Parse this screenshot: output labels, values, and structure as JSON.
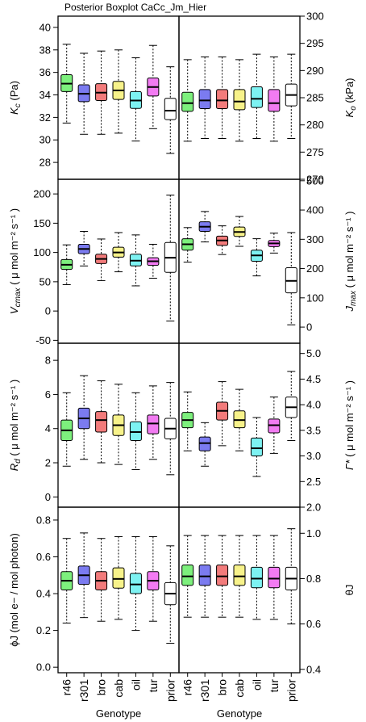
{
  "title": "Posterior Boxplot CaCc_Jm_Hier",
  "xlabel": "Genotype",
  "genotypes": [
    "r46",
    "r301",
    "bro",
    "cab",
    "oil",
    "tur",
    "prior"
  ],
  "colors": [
    "#7df07d",
    "#7b7bf0",
    "#f27b7b",
    "#f7f28a",
    "#7df2f2",
    "#f27bf2",
    "#ffffff"
  ],
  "chart_data": [
    {
      "type": "boxplot",
      "id": "Kc",
      "row": 0,
      "col": 0,
      "yaxis_side": "left",
      "ylabel": "K_c (Pa)",
      "ylabel_main": "K",
      "ylabel_sub": "c",
      "ylabel_rest": " (Pa)",
      "ylim": [
        26.5,
        41
      ],
      "yticks": [
        28,
        30,
        32,
        34,
        36,
        38,
        40
      ],
      "boxes": [
        {
          "genotype": "r46",
          "min": 31.5,
          "q1": 34.3,
          "median": 35.0,
          "q3": 35.8,
          "max": 38.5
        },
        {
          "genotype": "r301",
          "min": 30.5,
          "q1": 33.4,
          "median": 34.1,
          "q3": 34.9,
          "max": 37.7
        },
        {
          "genotype": "bro",
          "min": 30.5,
          "q1": 33.5,
          "median": 34.2,
          "q3": 35.0,
          "max": 37.9
        },
        {
          "genotype": "cab",
          "min": 30.6,
          "q1": 33.6,
          "median": 34.4,
          "q3": 35.2,
          "max": 38.0
        },
        {
          "genotype": "oil",
          "min": 29.9,
          "q1": 32.8,
          "median": 33.5,
          "q3": 34.3,
          "max": 37.3
        },
        {
          "genotype": "tur",
          "min": 31.0,
          "q1": 33.9,
          "median": 34.7,
          "q3": 35.5,
          "max": 38.4
        },
        {
          "genotype": "prior",
          "min": 28.8,
          "q1": 31.8,
          "median": 32.6,
          "q3": 33.7,
          "max": 36.5
        }
      ]
    },
    {
      "type": "boxplot",
      "id": "Ko",
      "row": 0,
      "col": 1,
      "yaxis_side": "right",
      "ylabel": "K_o (kPa)",
      "ylabel_main": "K",
      "ylabel_sub": "o",
      "ylabel_rest": " (kPa)",
      "ylim": [
        270,
        300
      ],
      "yticks": [
        270,
        275,
        280,
        285,
        290,
        295,
        300
      ],
      "boxes": [
        {
          "genotype": "r46",
          "min": 277.0,
          "q1": 282.5,
          "median": 284.0,
          "q3": 286.0,
          "max": 292.0
        },
        {
          "genotype": "r301",
          "min": 277.5,
          "q1": 283.0,
          "median": 284.5,
          "q3": 286.5,
          "max": 292.5
        },
        {
          "genotype": "bro",
          "min": 277.5,
          "q1": 283.0,
          "median": 284.5,
          "q3": 286.5,
          "max": 292.5
        },
        {
          "genotype": "cab",
          "min": 277.0,
          "q1": 282.8,
          "median": 284.3,
          "q3": 286.5,
          "max": 292.0
        },
        {
          "genotype": "oil",
          "min": 277.5,
          "q1": 283.2,
          "median": 284.8,
          "q3": 287.0,
          "max": 293.0
        },
        {
          "genotype": "tur",
          "min": 277.0,
          "q1": 282.5,
          "median": 284.0,
          "q3": 286.5,
          "max": 292.5
        },
        {
          "genotype": "prior",
          "min": 277.5,
          "q1": 283.5,
          "median": 285.5,
          "q3": 287.5,
          "max": 293.0
        }
      ]
    },
    {
      "type": "boxplot",
      "id": "Vcmax",
      "row": 1,
      "col": 0,
      "yaxis_side": "left",
      "ylabel": "V_cmax ( μ mol m^-2 s^-1 )",
      "ylabel_main": "V",
      "ylabel_sub": "cmax",
      "ylabel_rest": " ( μ mol m⁻² s⁻¹ )",
      "ylim": [
        -55,
        225
      ],
      "yticks": [
        -50,
        0,
        50,
        100,
        150,
        200
      ],
      "boxes": [
        {
          "genotype": "r46",
          "min": 45,
          "q1": 71,
          "median": 79,
          "q3": 88,
          "max": 113
        },
        {
          "genotype": "r301",
          "min": 77,
          "q1": 98,
          "median": 106,
          "q3": 114,
          "max": 136
        },
        {
          "genotype": "bro",
          "min": 52,
          "q1": 81,
          "median": 89,
          "q3": 97,
          "max": 123
        },
        {
          "genotype": "cab",
          "min": 67,
          "q1": 92,
          "median": 100,
          "q3": 109,
          "max": 134
        },
        {
          "genotype": "oil",
          "min": 43,
          "q1": 77,
          "median": 86,
          "q3": 97,
          "max": 130
        },
        {
          "genotype": "tur",
          "min": 56,
          "q1": 78,
          "median": 85,
          "q3": 91,
          "max": 114
        },
        {
          "genotype": "prior",
          "min": -17,
          "q1": 66,
          "median": 91,
          "q3": 117,
          "max": 198
        }
      ]
    },
    {
      "type": "boxplot",
      "id": "Jmax",
      "row": 1,
      "col": 1,
      "yaxis_side": "right",
      "ylabel": "J_max ( μ mol m^-2 s^-1 )",
      "ylabel_main": "J",
      "ylabel_sub": "max",
      "ylabel_rest": " ( μ mol m⁻² s⁻¹ )",
      "ylim": [
        -55,
        505
      ],
      "yticks": [
        0,
        100,
        200,
        300,
        400,
        500
      ],
      "boxes": [
        {
          "genotype": "r46",
          "min": 222,
          "q1": 263,
          "median": 283,
          "q3": 302,
          "max": 340
        },
        {
          "genotype": "r301",
          "min": 291,
          "q1": 327,
          "median": 343,
          "q3": 360,
          "max": 395
        },
        {
          "genotype": "bro",
          "min": 248,
          "q1": 279,
          "median": 296,
          "q3": 311,
          "max": 346
        },
        {
          "genotype": "cab",
          "min": 276,
          "q1": 310,
          "median": 325,
          "q3": 342,
          "max": 378
        },
        {
          "genotype": "oil",
          "min": 175,
          "q1": 225,
          "median": 245,
          "q3": 263,
          "max": 302
        },
        {
          "genotype": "tur",
          "min": 253,
          "q1": 275,
          "median": 286,
          "q3": 296,
          "max": 321
        },
        {
          "genotype": "prior",
          "min": 8,
          "q1": 117,
          "median": 158,
          "q3": 203,
          "max": 323
        }
      ]
    },
    {
      "type": "boxplot",
      "id": "Rd",
      "row": 2,
      "col": 0,
      "yaxis_side": "left",
      "ylabel": "R_d ( μ mol m^-2 s^-1 )",
      "ylabel_main": "R",
      "ylabel_sub": "d",
      "ylabel_rest": " ( μ mol m⁻² s⁻¹ )",
      "ylim": [
        -0.6,
        9.0
      ],
      "yticks": [
        0,
        2,
        4,
        6,
        8
      ],
      "boxes": [
        {
          "genotype": "r46",
          "min": 1.8,
          "q1": 3.3,
          "median": 3.9,
          "q3": 4.5,
          "max": 6.1
        },
        {
          "genotype": "r301",
          "min": 2.2,
          "q1": 4.0,
          "median": 4.6,
          "q3": 5.2,
          "max": 7.1
        },
        {
          "genotype": "bro",
          "min": 2.0,
          "q1": 3.8,
          "median": 4.5,
          "q3": 5.0,
          "max": 6.8
        },
        {
          "genotype": "cab",
          "min": 1.9,
          "q1": 3.6,
          "median": 4.2,
          "q3": 4.8,
          "max": 6.6
        },
        {
          "genotype": "oil",
          "min": 1.6,
          "q1": 3.3,
          "median": 3.8,
          "q3": 4.4,
          "max": 6.1
        },
        {
          "genotype": "tur",
          "min": 2.2,
          "q1": 3.7,
          "median": 4.3,
          "q3": 4.8,
          "max": 6.5
        },
        {
          "genotype": "prior",
          "min": 1.3,
          "q1": 3.4,
          "median": 4.0,
          "q3": 4.6,
          "max": 6.7
        }
      ]
    },
    {
      "type": "boxplot",
      "id": "Gamma",
      "row": 2,
      "col": 1,
      "yaxis_side": "right",
      "ylabel": "Γ* ( μ mol m^-2 s^-1 )",
      "ylabel_main": "Γ*",
      "ylabel_sub": "",
      "ylabel_rest": " ( μ mol m⁻² s⁻¹ )",
      "ylim": [
        2.0,
        5.2
      ],
      "yticks": [
        2.0,
        2.5,
        3.0,
        3.5,
        4.0,
        4.5,
        5.0
      ],
      "boxes": [
        {
          "genotype": "r46",
          "min": 3.1,
          "q1": 3.55,
          "median": 3.7,
          "q3": 3.85,
          "max": 4.25
        },
        {
          "genotype": "r301",
          "min": 2.8,
          "q1": 3.1,
          "median": 3.25,
          "q3": 3.37,
          "max": 3.65
        },
        {
          "genotype": "bro",
          "min": 3.2,
          "q1": 3.7,
          "median": 3.88,
          "q3": 4.05,
          "max": 4.45
        },
        {
          "genotype": "cab",
          "min": 3.1,
          "q1": 3.55,
          "median": 3.7,
          "q3": 3.88,
          "max": 4.3
        },
        {
          "genotype": "oil",
          "min": 2.6,
          "q1": 3.0,
          "median": 3.15,
          "q3": 3.35,
          "max": 3.75
        },
        {
          "genotype": "tur",
          "min": 3.05,
          "q1": 3.45,
          "median": 3.6,
          "q3": 3.72,
          "max": 4.15
        },
        {
          "genotype": "prior",
          "min": 3.3,
          "q1": 3.75,
          "median": 3.95,
          "q3": 4.15,
          "max": 4.65
        }
      ]
    },
    {
      "type": "boxplot",
      "id": "phiJ",
      "row": 3,
      "col": 0,
      "yaxis_side": "left",
      "ylabel": "ϕJ (mol e− / mol photon)",
      "ylim": [
        -0.03,
        0.87
      ],
      "yticks": [
        0.0,
        0.2,
        0.4,
        0.6,
        0.8
      ],
      "boxes": [
        {
          "genotype": "r46",
          "min": 0.24,
          "q1": 0.42,
          "median": 0.47,
          "q3": 0.52,
          "max": 0.7
        },
        {
          "genotype": "r301",
          "min": 0.27,
          "q1": 0.45,
          "median": 0.5,
          "q3": 0.55,
          "max": 0.73
        },
        {
          "genotype": "bro",
          "min": 0.25,
          "q1": 0.42,
          "median": 0.47,
          "q3": 0.52,
          "max": 0.7
        },
        {
          "genotype": "cab",
          "min": 0.26,
          "q1": 0.43,
          "median": 0.48,
          "q3": 0.54,
          "max": 0.71
        },
        {
          "genotype": "oil",
          "min": 0.2,
          "q1": 0.4,
          "median": 0.45,
          "q3": 0.51,
          "max": 0.71
        },
        {
          "genotype": "tur",
          "min": 0.25,
          "q1": 0.42,
          "median": 0.47,
          "q3": 0.52,
          "max": 0.71
        },
        {
          "genotype": "prior",
          "min": 0.13,
          "q1": 0.34,
          "median": 0.4,
          "q3": 0.46,
          "max": 0.66
        }
      ]
    },
    {
      "type": "boxplot",
      "id": "thetaJ",
      "row": 3,
      "col": 1,
      "yaxis_side": "right",
      "ylabel": "θJ",
      "ylim": [
        0.385,
        1.115
      ],
      "yticks": [
        0.4,
        0.6,
        0.8,
        1.0
      ],
      "boxes": [
        {
          "genotype": "r46",
          "min": 0.63,
          "q1": 0.77,
          "median": 0.81,
          "q3": 0.86,
          "max": 0.99
        },
        {
          "genotype": "r301",
          "min": 0.63,
          "q1": 0.77,
          "median": 0.81,
          "q3": 0.86,
          "max": 0.99
        },
        {
          "genotype": "bro",
          "min": 0.63,
          "q1": 0.77,
          "median": 0.81,
          "q3": 0.86,
          "max": 0.99
        },
        {
          "genotype": "cab",
          "min": 0.63,
          "q1": 0.77,
          "median": 0.81,
          "q3": 0.86,
          "max": 0.99
        },
        {
          "genotype": "oil",
          "min": 0.62,
          "q1": 0.76,
          "median": 0.8,
          "q3": 0.85,
          "max": 0.99
        },
        {
          "genotype": "tur",
          "min": 0.62,
          "q1": 0.76,
          "median": 0.8,
          "q3": 0.85,
          "max": 0.99
        },
        {
          "genotype": "prior",
          "min": 0.6,
          "q1": 0.75,
          "median": 0.8,
          "q3": 0.85,
          "max": 1.02
        }
      ]
    }
  ]
}
